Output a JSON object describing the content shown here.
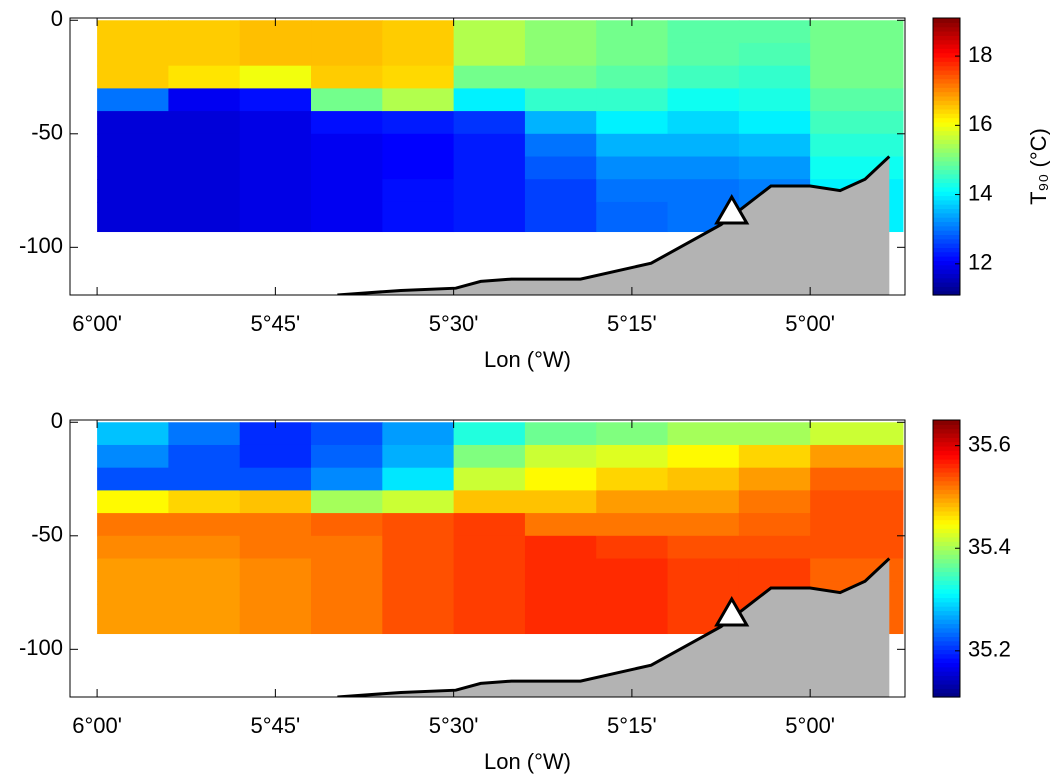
{
  "chart_data": [
    {
      "type": "section",
      "xlabel": "Lon (°W)",
      "colorbar_label": "T₉₀ (°C)",
      "xlim": [
        6.038,
        4.867
      ],
      "ylim": [
        -121,
        1
      ],
      "xticks": [
        {
          "value": 6.0,
          "label": "6°00'"
        },
        {
          "value": 5.75,
          "label": "5°45'"
        },
        {
          "value": 5.5,
          "label": "5°30'"
        },
        {
          "value": 5.25,
          "label": "5°15'"
        },
        {
          "value": 5.0,
          "label": "5°00'"
        }
      ],
      "yticks": [
        0,
        -50,
        -100
      ],
      "clim": [
        11.1,
        19.1
      ],
      "cticks": [
        12,
        14,
        16,
        18
      ],
      "xbins": [
        6.0,
        5.9,
        5.8,
        5.7,
        5.6,
        5.5,
        5.4,
        5.3,
        5.2,
        5.1,
        5.0,
        4.87
      ],
      "ybins": [
        0,
        -10,
        -20,
        -30,
        -40,
        -50,
        -60,
        -70,
        -80,
        -93
      ],
      "z": [
        [
          16.5,
          16.5,
          16.5,
          13.0,
          11.8,
          11.8,
          11.8,
          11.8,
          11.8
        ],
        [
          16.5,
          16.5,
          16.3,
          12.0,
          11.8,
          11.8,
          11.8,
          11.8,
          11.8
        ],
        [
          16.6,
          16.6,
          16.0,
          12.2,
          11.9,
          11.9,
          11.9,
          11.9,
          11.9
        ],
        [
          16.6,
          16.6,
          16.5,
          15.0,
          12.2,
          12.0,
          12.0,
          12.0,
          12.0
        ],
        [
          16.5,
          16.5,
          16.4,
          15.5,
          12.3,
          12.1,
          12.1,
          12.2,
          12.2
        ],
        [
          15.5,
          15.5,
          15.0,
          14.0,
          12.5,
          12.3,
          12.3,
          12.3,
          12.3
        ],
        [
          15.2,
          15.2,
          15.0,
          14.5,
          13.5,
          13.0,
          12.8,
          12.6,
          12.6
        ],
        [
          15.0,
          15.0,
          14.8,
          14.5,
          14.0,
          13.5,
          13.2,
          13.0,
          12.9
        ],
        [
          14.8,
          14.8,
          14.6,
          14.2,
          13.8,
          13.5,
          13.2,
          13.0,
          13.0
        ],
        [
          14.8,
          14.7,
          14.5,
          14.3,
          14.0,
          13.6,
          13.3,
          13.1,
          13.1
        ],
        [
          15.0,
          15.0,
          15.0,
          14.8,
          14.6,
          14.4,
          14.2,
          14.0,
          14.0
        ]
      ],
      "seabed": {
        "x": [
          5.663,
          5.574,
          5.497,
          5.462,
          5.419,
          5.322,
          5.223,
          5.125,
          5.055,
          5.0,
          4.958,
          4.923,
          4.889
        ],
        "y": [
          -121,
          -119,
          -118,
          -115,
          -114,
          -114,
          -107,
          -90,
          -73,
          -73,
          -75,
          -70,
          -60
        ]
      },
      "station": {
        "x": 5.11,
        "y": -84
      }
    },
    {
      "type": "section",
      "xlabel": "Lon (°W)",
      "xlim": [
        6.038,
        4.867
      ],
      "ylim": [
        -121,
        1
      ],
      "xticks": [
        {
          "value": 6.0,
          "label": "6°00'"
        },
        {
          "value": 5.75,
          "label": "5°45'"
        },
        {
          "value": 5.5,
          "label": "5°30'"
        },
        {
          "value": 5.25,
          "label": "5°15'"
        },
        {
          "value": 5.0,
          "label": "5°00'"
        }
      ],
      "yticks": [
        0,
        -50,
        -100
      ],
      "clim": [
        35.11,
        35.65
      ],
      "cticks": [
        35.2,
        35.4,
        35.6
      ],
      "xbins": [
        6.0,
        5.9,
        5.8,
        5.7,
        5.6,
        5.5,
        5.4,
        5.3,
        5.2,
        5.1,
        5.0,
        4.87
      ],
      "ybins": [
        0,
        -10,
        -20,
        -30,
        -40,
        -50,
        -60,
        -70,
        -80,
        -93
      ],
      "z": [
        [
          35.28,
          35.25,
          35.22,
          35.45,
          35.52,
          35.51,
          35.5,
          35.5,
          35.5
        ],
        [
          35.24,
          35.22,
          35.22,
          35.47,
          35.52,
          35.51,
          35.5,
          35.5,
          35.5
        ],
        [
          35.2,
          35.2,
          35.22,
          35.48,
          35.52,
          35.52,
          35.51,
          35.51,
          35.51
        ],
        [
          35.22,
          35.23,
          35.25,
          35.4,
          35.53,
          35.52,
          35.52,
          35.52,
          35.52
        ],
        [
          35.26,
          35.27,
          35.3,
          35.42,
          35.54,
          35.54,
          35.54,
          35.54,
          35.54
        ],
        [
          35.33,
          35.38,
          35.42,
          35.48,
          35.55,
          35.55,
          35.55,
          35.55,
          35.55
        ],
        [
          35.37,
          35.42,
          35.45,
          35.48,
          35.52,
          35.56,
          35.56,
          35.56,
          35.56
        ],
        [
          35.38,
          35.43,
          35.47,
          35.5,
          35.52,
          35.55,
          35.56,
          35.56,
          35.56
        ],
        [
          35.4,
          35.45,
          35.48,
          35.5,
          35.52,
          35.54,
          35.55,
          35.55,
          35.55
        ],
        [
          35.4,
          35.47,
          35.5,
          35.52,
          35.53,
          35.54,
          35.55,
          35.55,
          35.55
        ],
        [
          35.42,
          35.5,
          35.53,
          35.54,
          35.54,
          35.54,
          35.53,
          35.53,
          35.53
        ]
      ],
      "seabed": {
        "x": [
          5.663,
          5.574,
          5.497,
          5.462,
          5.419,
          5.322,
          5.223,
          5.125,
          5.055,
          5.0,
          4.958,
          4.923,
          4.889
        ],
        "y": [
          -121,
          -119,
          -118,
          -115,
          -114,
          -114,
          -107,
          -90,
          -73,
          -73,
          -75,
          -70,
          -60
        ]
      },
      "station": {
        "x": 5.11,
        "y": -84
      }
    }
  ]
}
